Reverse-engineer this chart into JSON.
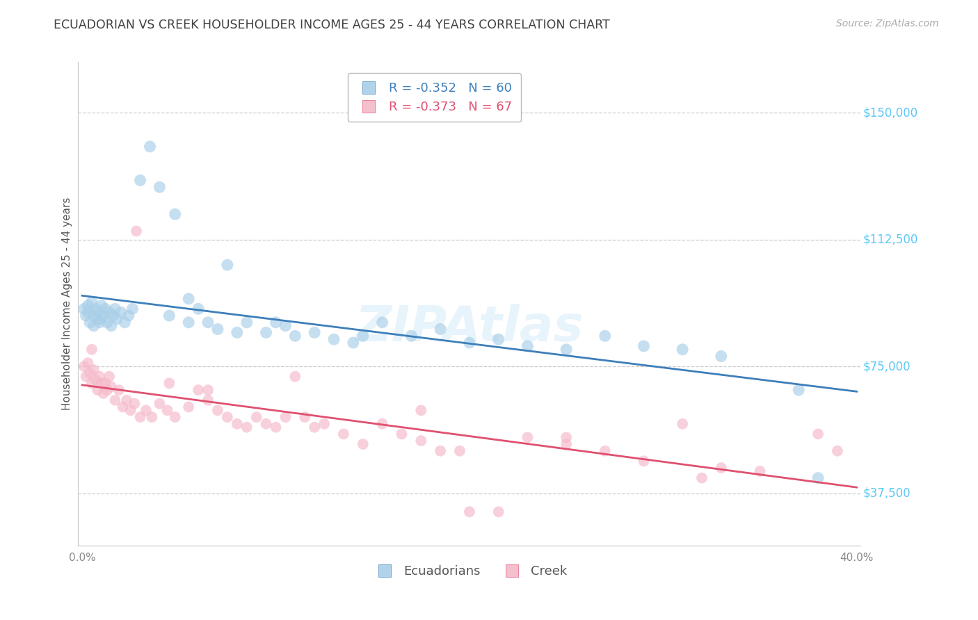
{
  "title": "ECUADORIAN VS CREEK HOUSEHOLDER INCOME AGES 25 - 44 YEARS CORRELATION CHART",
  "source": "Source: ZipAtlas.com",
  "ylabel": "Householder Income Ages 25 - 44 years",
  "xlim": [
    -0.002,
    0.402
  ],
  "ylim": [
    22000,
    165000
  ],
  "yticks": [
    37500,
    75000,
    112500,
    150000
  ],
  "ytick_labels": [
    "$37,500",
    "$75,000",
    "$112,500",
    "$150,000"
  ],
  "xtick_positions": [
    0.0,
    0.05,
    0.1,
    0.15,
    0.2,
    0.25,
    0.3,
    0.35,
    0.4
  ],
  "xtick_labels": [
    "0.0%",
    "",
    "",
    "",
    "",
    "",
    "",
    "",
    "40.0%"
  ],
  "background_color": "#ffffff",
  "blue_scatter_color": "#a8cfe8",
  "blue_line_color": "#3d7fba",
  "pink_scatter_color": "#f5b8c8",
  "pink_line_color": "#e05070",
  "grid_color": "#cccccc",
  "ytick_label_color": "#5bc8f5",
  "title_color": "#404040",
  "source_color": "#aaaaaa",
  "ylabel_color": "#555555",
  "xtick_color": "#888888",
  "legend_line1": "R = -0.352   N = 60",
  "legend_line2": "R = -0.373   N = 67",
  "legend_label1": "Ecuadorians",
  "legend_label2": "Creek",
  "blue_x": [
    0.001,
    0.002,
    0.003,
    0.003,
    0.004,
    0.005,
    0.006,
    0.006,
    0.007,
    0.008,
    0.008,
    0.009,
    0.01,
    0.01,
    0.011,
    0.012,
    0.013,
    0.014,
    0.015,
    0.016,
    0.017,
    0.018,
    0.02,
    0.022,
    0.024,
    0.026,
    0.03,
    0.035,
    0.04,
    0.048,
    0.055,
    0.06,
    0.065,
    0.075,
    0.085,
    0.095,
    0.1,
    0.105,
    0.11,
    0.12,
    0.13,
    0.14,
    0.155,
    0.17,
    0.185,
    0.2,
    0.215,
    0.23,
    0.25,
    0.27,
    0.29,
    0.31,
    0.33,
    0.145,
    0.045,
    0.055,
    0.07,
    0.08,
    0.38,
    0.37
  ],
  "blue_y": [
    92000,
    90000,
    93000,
    91000,
    88000,
    94000,
    90000,
    87000,
    92000,
    89000,
    91000,
    88000,
    93000,
    89000,
    90000,
    92000,
    88000,
    91000,
    87000,
    90000,
    92000,
    89000,
    91000,
    88000,
    90000,
    92000,
    130000,
    140000,
    128000,
    120000,
    95000,
    92000,
    88000,
    105000,
    88000,
    85000,
    88000,
    87000,
    84000,
    85000,
    83000,
    82000,
    88000,
    84000,
    86000,
    82000,
    83000,
    81000,
    80000,
    84000,
    81000,
    80000,
    78000,
    84000,
    90000,
    88000,
    86000,
    85000,
    42000,
    68000
  ],
  "pink_x": [
    0.001,
    0.002,
    0.003,
    0.004,
    0.005,
    0.006,
    0.007,
    0.008,
    0.009,
    0.01,
    0.011,
    0.012,
    0.013,
    0.014,
    0.015,
    0.017,
    0.019,
    0.021,
    0.023,
    0.025,
    0.027,
    0.03,
    0.033,
    0.036,
    0.04,
    0.044,
    0.048,
    0.055,
    0.06,
    0.065,
    0.07,
    0.075,
    0.08,
    0.085,
    0.09,
    0.095,
    0.1,
    0.105,
    0.11,
    0.115,
    0.12,
    0.125,
    0.135,
    0.145,
    0.155,
    0.165,
    0.175,
    0.185,
    0.2,
    0.215,
    0.23,
    0.25,
    0.27,
    0.29,
    0.31,
    0.33,
    0.35,
    0.028,
    0.045,
    0.065,
    0.38,
    0.39,
    0.25,
    0.195,
    0.175,
    0.32,
    0.005
  ],
  "pink_y": [
    75000,
    72000,
    76000,
    73000,
    70000,
    74000,
    71000,
    68000,
    72000,
    70000,
    67000,
    70000,
    68000,
    72000,
    69000,
    65000,
    68000,
    63000,
    65000,
    62000,
    64000,
    60000,
    62000,
    60000,
    64000,
    62000,
    60000,
    63000,
    68000,
    65000,
    62000,
    60000,
    58000,
    57000,
    60000,
    58000,
    57000,
    60000,
    72000,
    60000,
    57000,
    58000,
    55000,
    52000,
    58000,
    55000,
    53000,
    50000,
    32000,
    32000,
    54000,
    52000,
    50000,
    47000,
    58000,
    45000,
    44000,
    115000,
    70000,
    68000,
    55000,
    50000,
    54000,
    50000,
    62000,
    42000,
    80000
  ]
}
